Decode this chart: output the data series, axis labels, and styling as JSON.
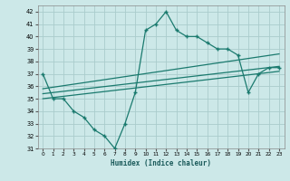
{
  "main_x": [
    0,
    1,
    2,
    3,
    4,
    5,
    6,
    7,
    8,
    9,
    10,
    11,
    12,
    13,
    14,
    15,
    16,
    17,
    18,
    19,
    20,
    21,
    22,
    23
  ],
  "main_y": [
    37,
    35,
    35,
    34,
    33.5,
    32.5,
    32,
    31,
    33,
    35.5,
    40.5,
    41,
    42,
    40.5,
    40,
    40,
    39.5,
    39,
    39,
    38.5,
    35.5,
    37,
    37.5,
    37.5
  ],
  "trend1_x": [
    0,
    23
  ],
  "trend1_y": [
    35.8,
    38.6
  ],
  "trend2_x": [
    0,
    23
  ],
  "trend2_y": [
    35.4,
    37.6
  ],
  "trend3_x": [
    0,
    23
  ],
  "trend3_y": [
    35.0,
    37.2
  ],
  "line_color": "#1a7a6e",
  "bg_color": "#cce8e8",
  "grid_color": "#aacccc",
  "xlabel": "Humidex (Indice chaleur)",
  "ylim": [
    31,
    42.5
  ],
  "xlim": [
    -0.5,
    23.5
  ],
  "yticks": [
    31,
    32,
    33,
    34,
    35,
    36,
    37,
    38,
    39,
    40,
    41,
    42
  ],
  "xticks": [
    0,
    1,
    2,
    3,
    4,
    5,
    6,
    7,
    8,
    9,
    10,
    11,
    12,
    13,
    14,
    15,
    16,
    17,
    18,
    19,
    20,
    21,
    22,
    23
  ]
}
